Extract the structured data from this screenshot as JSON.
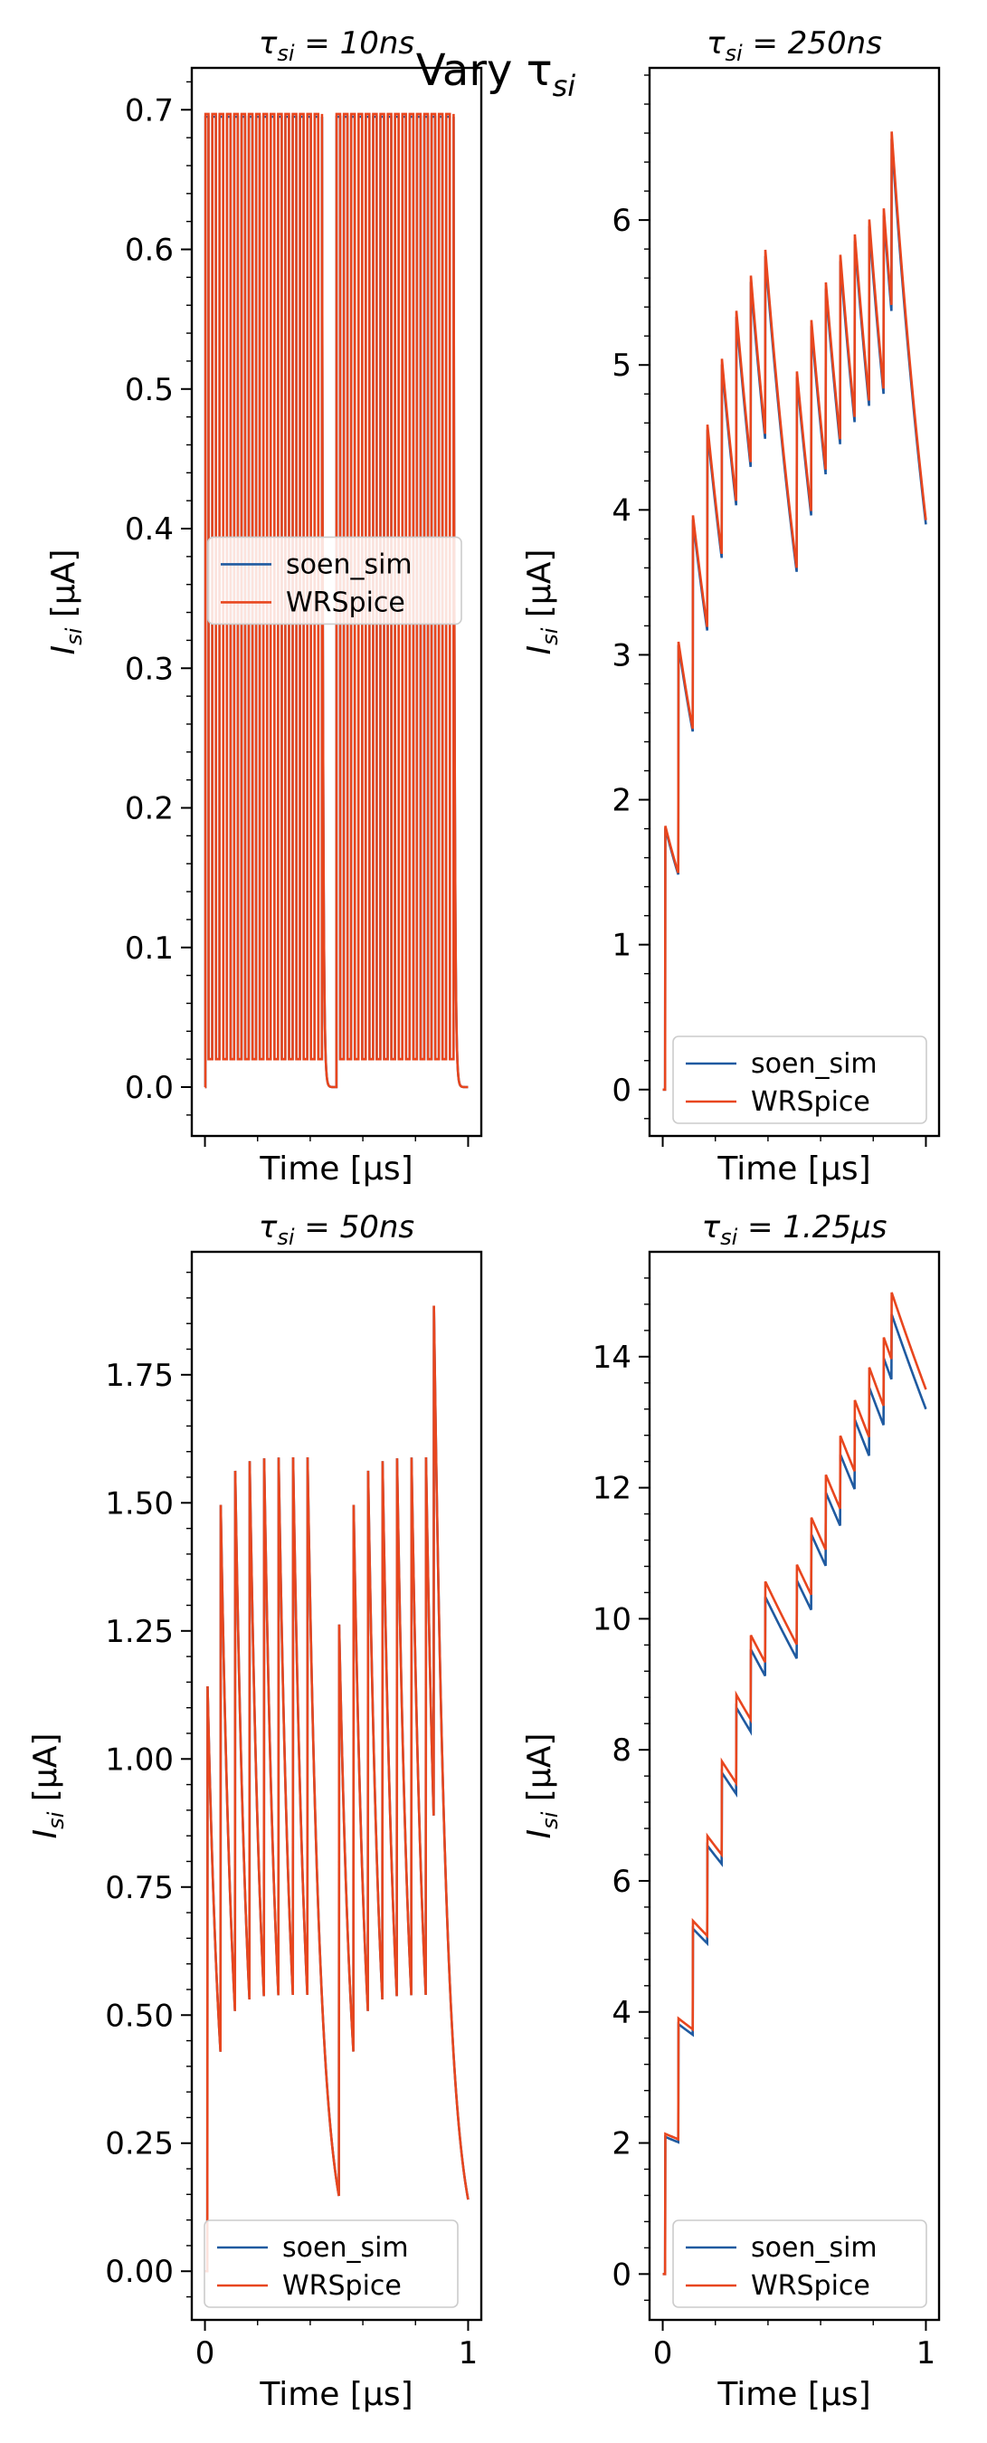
{
  "figure_title": "Vary τ",
  "figure_title_sub": "si",
  "chart_data": [
    {
      "type": "line",
      "title_tau": "τ",
      "title_sub": "si",
      "title_value": " = 10ns",
      "xlabel": "Time [μs]",
      "ylabel_main": "I",
      "ylabel_sub": "si",
      "ylabel_unit": " [μA]",
      "xlim": [
        -0.05,
        1.05
      ],
      "ylim": [
        -0.035,
        0.73
      ],
      "yticks": [
        0.0,
        0.1,
        0.2,
        0.3,
        0.4,
        0.5,
        0.6,
        0.7
      ],
      "ytick_labels": [
        "0.0",
        "0.1",
        "0.2",
        "0.3",
        "0.4",
        "0.5",
        "0.6",
        "0.7"
      ],
      "xticks": [
        0,
        1
      ],
      "xtick_labels": [],
      "legend_placement": "center-left",
      "series": [
        {
          "name": "soen_sim",
          "color": "#1f5aa0",
          "model": {
            "kind": "pulse",
            "base": 0.0,
            "peak": 0.695,
            "trough": 0.02,
            "start_jump": 0.69,
            "decay": 0.0012,
            "end_level": 0.0
          }
        },
        {
          "name": "WRSpice",
          "color": "#e8461e",
          "model": {
            "kind": "pulse",
            "base": 0.0,
            "peak": 0.697,
            "trough": 0.02,
            "start_jump": 0.69,
            "decay": 0.0012,
            "end_level": 0.0
          }
        }
      ]
    },
    {
      "type": "line",
      "title_tau": "τ",
      "title_sub": "si",
      "title_value": " = 250ns",
      "xlabel": "Time [μs]",
      "ylabel_main": "I",
      "ylabel_sub": "si",
      "ylabel_unit": " [μA]",
      "xlim": [
        -0.05,
        1.05
      ],
      "ylim": [
        -0.32,
        7.05
      ],
      "yticks": [
        0,
        1,
        2,
        3,
        4,
        5,
        6
      ],
      "ytick_labels": [
        "0",
        "1",
        "2",
        "3",
        "4",
        "5",
        "6"
      ],
      "xticks": [
        0,
        1
      ],
      "xtick_labels": [],
      "legend_placement": "lower-right",
      "series": [
        {
          "name": "soen_sim",
          "color": "#1f5aa0",
          "model": {
            "kind": "saw",
            "jump": 1.39,
            "tau": 0.25,
            "gain": 0.0,
            "end_level": 3.9
          }
        },
        {
          "name": "WRSpice",
          "color": "#e8461e",
          "model": {
            "kind": "saw",
            "jump": 1.36,
            "tau": 0.25,
            "gain": 0.0,
            "end_level": 3.93
          }
        }
      ]
    },
    {
      "type": "line",
      "title_tau": "τ",
      "title_sub": "si",
      "title_value": " = 50ns",
      "xlabel": "Time [μs]",
      "ylabel_main": "I",
      "ylabel_sub": "si",
      "ylabel_unit": " [μA]",
      "xlim": [
        -0.05,
        1.05
      ],
      "ylim": [
        -0.095,
        1.99
      ],
      "yticks": [
        0.0,
        0.25,
        0.5,
        0.75,
        1.0,
        1.25,
        1.5,
        1.75
      ],
      "ytick_labels": [
        "0.00",
        "0.25",
        "0.50",
        "0.75",
        "1.00",
        "1.25",
        "1.50",
        "1.75"
      ],
      "xticks": [
        0,
        1
      ],
      "xtick_labels": [
        "0",
        "1"
      ],
      "legend_placement": "lower-center",
      "series": [
        {
          "name": "soen_sim",
          "color": "#1f5aa0",
          "model": {
            "kind": "saw",
            "jump": 1.21,
            "tau": 0.05,
            "gain": 0.0,
            "end_level": 0.14
          }
        },
        {
          "name": "WRSpice",
          "color": "#e8461e",
          "model": {
            "kind": "saw",
            "jump": 1.19,
            "tau": 0.05,
            "gain": 0.0,
            "end_level": 0.14
          }
        }
      ]
    },
    {
      "type": "line",
      "title_tau": "τ",
      "title_sub": "si",
      "title_value": " = 1.25μs",
      "xlabel": "Time [μs]",
      "ylabel_main": "I",
      "ylabel_sub": "si",
      "ylabel_unit": " [μA]",
      "xlim": [
        -0.05,
        1.05
      ],
      "ylim": [
        -0.7,
        15.6
      ],
      "yticks": [
        0,
        2,
        4,
        6,
        8,
        10,
        12,
        14
      ],
      "ytick_labels": [
        "0",
        "2",
        "4",
        "6",
        "8",
        "10",
        "12",
        "14"
      ],
      "xticks": [
        0,
        1
      ],
      "xtick_labels": [
        "0",
        "1"
      ],
      "legend_placement": "lower-right",
      "series": [
        {
          "name": "soen_sim",
          "color": "#1f5aa0",
          "model": {
            "kind": "saw",
            "jump": 1.45,
            "tau": 1.25,
            "gain": 0.0,
            "end_level": 13.2
          }
        },
        {
          "name": "WRSpice",
          "color": "#e8461e",
          "model": {
            "kind": "saw",
            "jump": 1.4,
            "tau": 1.25,
            "gain": 0.0,
            "end_level": 13.5
          }
        }
      ]
    }
  ]
}
